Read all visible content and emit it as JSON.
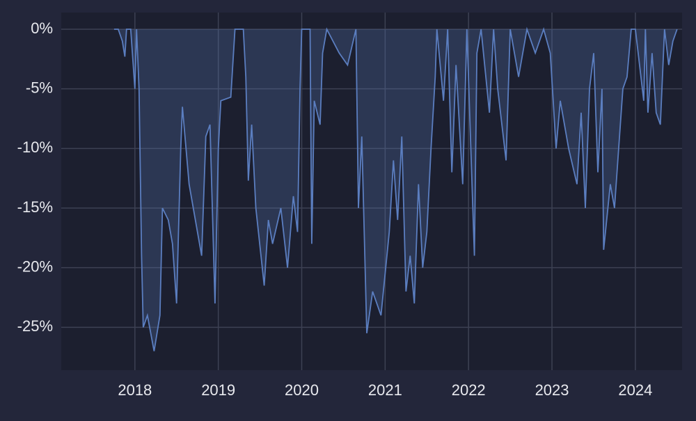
{
  "chart_data": {
    "type": "area",
    "x": [
      2017.75,
      2017.8,
      2017.85,
      2017.88,
      2017.9,
      2017.95,
      2018.0,
      2018.02,
      2018.05,
      2018.08,
      2018.1,
      2018.15,
      2018.23,
      2018.3,
      2018.33,
      2018.4,
      2018.45,
      2018.5,
      2018.55,
      2018.57,
      2018.65,
      2018.75,
      2018.8,
      2018.85,
      2018.9,
      2018.96,
      2019.0,
      2019.03,
      2019.15,
      2019.2,
      2019.3,
      2019.33,
      2019.36,
      2019.4,
      2019.45,
      2019.55,
      2019.6,
      2019.65,
      2019.75,
      2019.83,
      2019.9,
      2019.95,
      2019.98,
      2020.0,
      2020.1,
      2020.12,
      2020.15,
      2020.22,
      2020.25,
      2020.3,
      2020.45,
      2020.55,
      2020.65,
      2020.68,
      2020.72,
      2020.78,
      2020.85,
      2020.95,
      2021.05,
      2021.1,
      2021.15,
      2021.2,
      2021.25,
      2021.3,
      2021.35,
      2021.4,
      2021.45,
      2021.5,
      2021.55,
      2021.6,
      2021.62,
      2021.7,
      2021.75,
      2021.8,
      2021.85,
      2021.93,
      2021.98,
      2022.07,
      2022.1,
      2022.15,
      2022.25,
      2022.3,
      2022.35,
      2022.45,
      2022.5,
      2022.6,
      2022.7,
      2022.8,
      2022.9,
      2022.98,
      2023.05,
      2023.1,
      2023.2,
      2023.3,
      2023.35,
      2023.4,
      2023.45,
      2023.5,
      2023.55,
      2023.6,
      2023.62,
      2023.7,
      2023.75,
      2023.8,
      2023.85,
      2023.9,
      2023.95,
      2024.0,
      2024.1,
      2024.12,
      2024.15,
      2024.2,
      2024.25,
      2024.3,
      2024.35,
      2024.4,
      2024.45,
      2024.5
    ],
    "series": [
      {
        "color": "#5b7ec0",
        "values": [
          0,
          0,
          -1,
          -2.3,
          0,
          0,
          -5,
          0,
          -5,
          -19,
          -25,
          -24,
          -27,
          -24,
          -15,
          -16,
          -18,
          -23,
          -10,
          -6.5,
          -13,
          -17,
          -19,
          -9,
          -8,
          -23,
          -10,
          -6,
          -5.7,
          0,
          0,
          -4,
          -12.7,
          -8,
          -15,
          -21.5,
          -16,
          -18,
          -15,
          -20,
          -14,
          -17,
          -5,
          0,
          0,
          -18,
          -6,
          -8,
          -2,
          0,
          -2,
          -3,
          0,
          -15,
          -9,
          -25.5,
          -22,
          -24,
          -17,
          -11,
          -16,
          -9,
          -22,
          -19,
          -23,
          -13,
          -20,
          -17,
          -10,
          -4,
          0,
          -6,
          0,
          -12,
          -3,
          -13,
          0,
          -19,
          -2,
          0,
          -7,
          0,
          -5,
          -11,
          0,
          -4,
          0,
          -2,
          0,
          -2,
          -10,
          -6,
          -10,
          -13,
          -7,
          -15,
          -5,
          -2,
          -12,
          -5,
          -18.5,
          -13,
          -15,
          -10,
          -5,
          -4,
          0,
          0,
          -6,
          0,
          -7,
          -2,
          -7,
          -8,
          0,
          -3,
          -1,
          0
        ]
      }
    ],
    "xlim": [
      2017.117,
      2024.56
    ],
    "xticks": [
      2018,
      2019,
      2020,
      2021,
      2022,
      2023,
      2024
    ],
    "ylim": [
      -28.6,
      1.4
    ],
    "yticks": [
      {
        "value": 0,
        "label": "0%"
      },
      {
        "value": -5,
        "label": "-5%"
      },
      {
        "value": -10,
        "label": "-10%"
      },
      {
        "value": -15,
        "label": "-15%"
      },
      {
        "value": -20,
        "label": "-20%"
      },
      {
        "value": -25,
        "label": "-25%"
      }
    ],
    "grid": true
  }
}
